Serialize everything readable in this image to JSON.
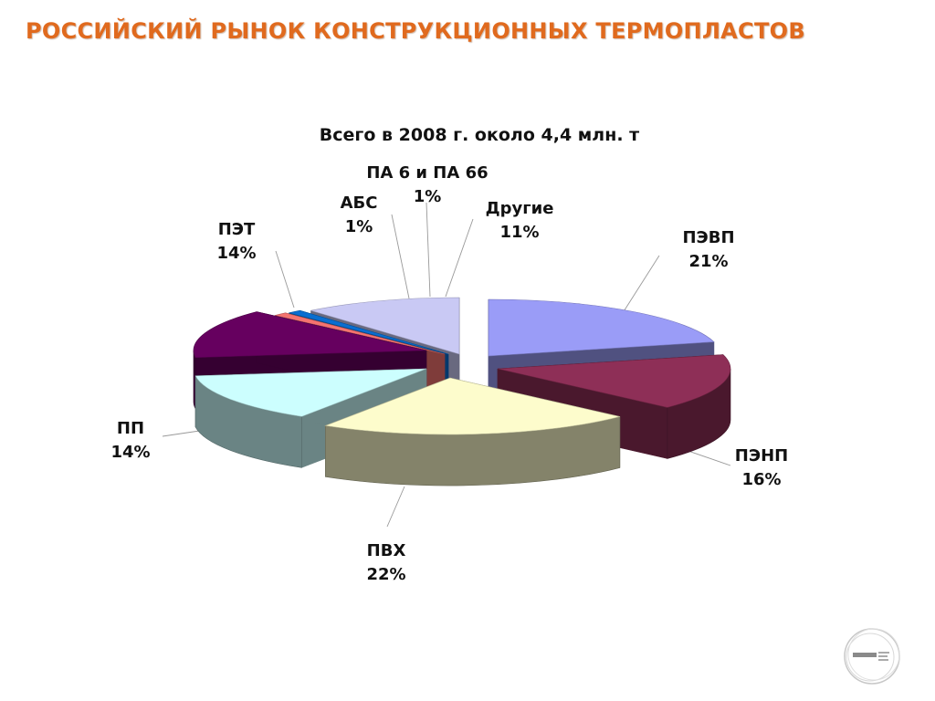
{
  "slide": {
    "title": "РОССИЙСКИЙ РЫНОК КОНСТРУКЦИОННЫХ ТЕРМОПЛАСТОВ"
  },
  "chart_data": {
    "type": "pie",
    "title": "Всего в 2008 г. около 4,4 млн. т",
    "unit": "%",
    "slices": [
      {
        "name": "ПЭВП",
        "value": 21,
        "label": "21%",
        "color": "#9a9cf7"
      },
      {
        "name": "ПЭНП",
        "value": 16,
        "label": "16%",
        "color": "#8e2f57"
      },
      {
        "name": "ПВХ",
        "value": 22,
        "label": "22%",
        "color": "#fdfccc"
      },
      {
        "name": "ПП",
        "value": 14,
        "label": "14%",
        "color": "#ccfefe"
      },
      {
        "name": "ПЭТ",
        "value": 14,
        "label": "14%",
        "color": "#66005f"
      },
      {
        "name": "АБС",
        "value": 1,
        "label": "1%",
        "color": "#f47470"
      },
      {
        "name": "ПА 6 и ПА 66",
        "value": 1,
        "label": "1%",
        "color": "#0a6ed0"
      },
      {
        "name": "Другие",
        "value": 11,
        "label": "11%",
        "color": "#c9c9f4"
      }
    ]
  }
}
